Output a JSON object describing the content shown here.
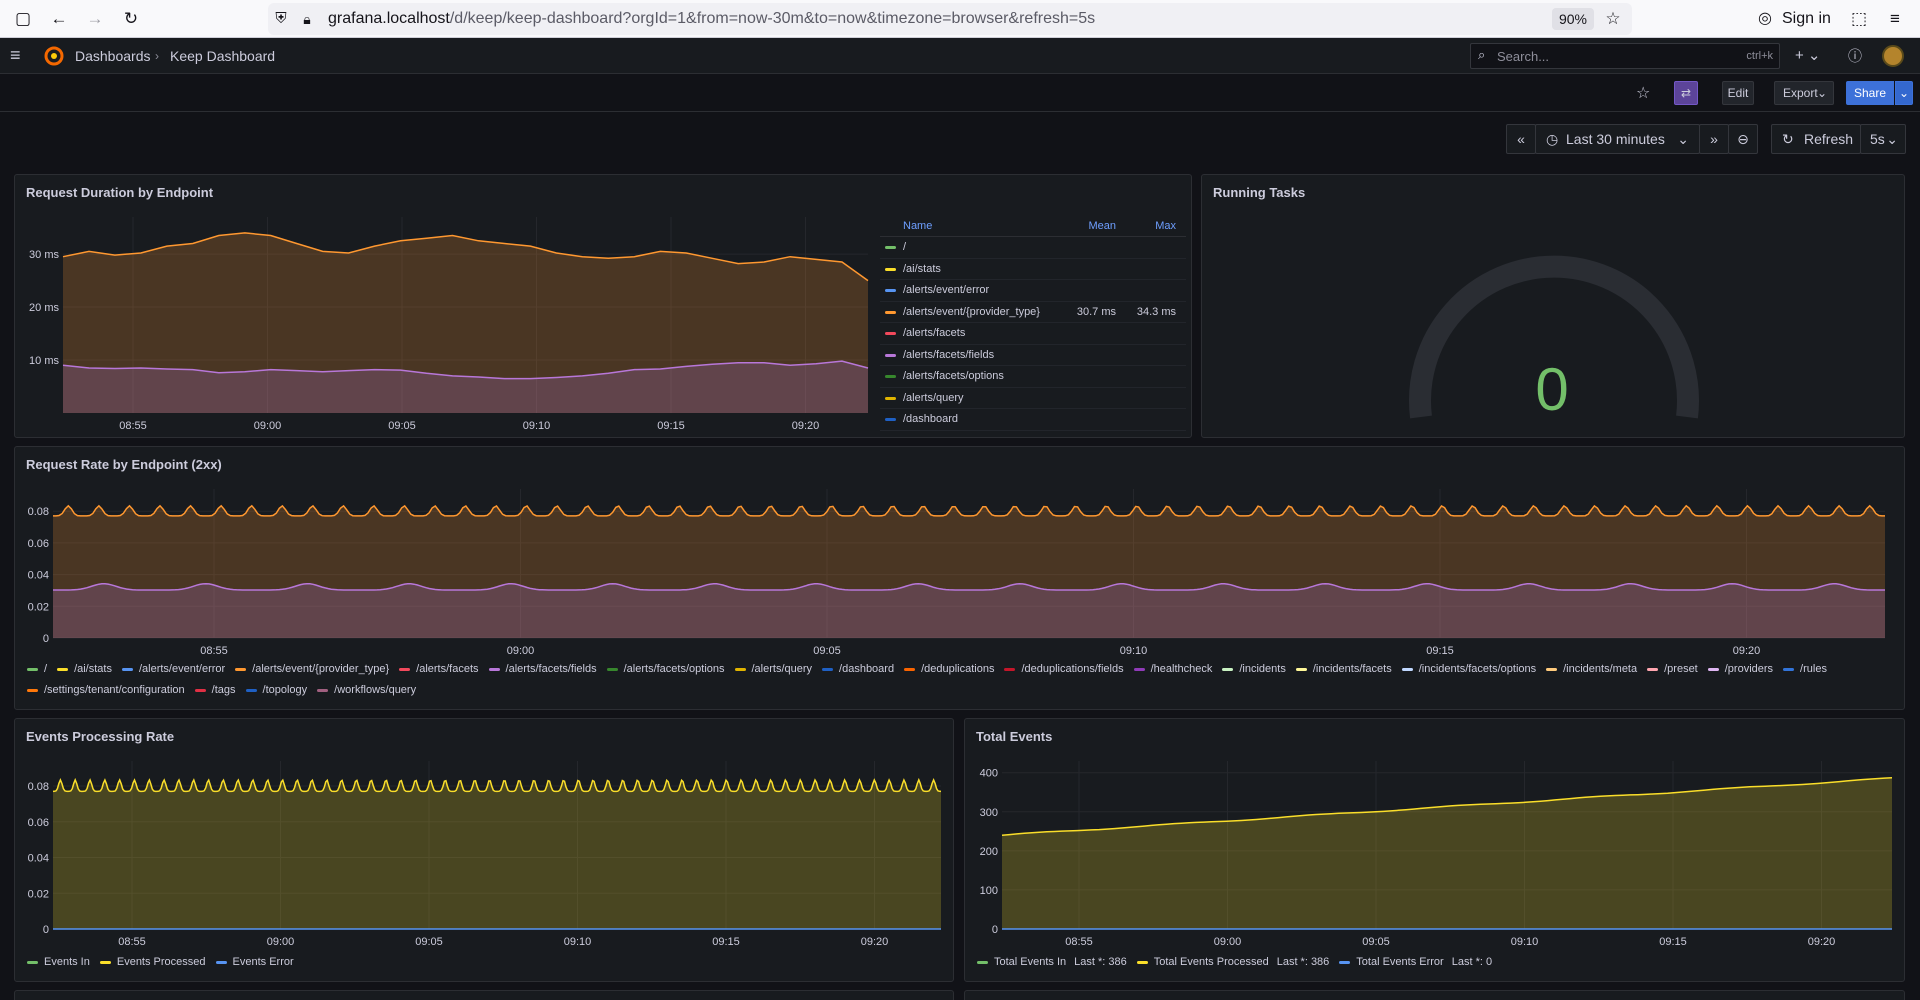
{
  "browser": {
    "url_host": "grafana.localhost",
    "url_rest": "/d/keep/keep-dashboard?orgId=1&from=now-30m&to=now&timezone=browser&refresh=5s",
    "zoom": "90%",
    "signin": "Sign in"
  },
  "topbar": {
    "breadcrumb_root": "Dashboards",
    "breadcrumb_current": "Keep Dashboard",
    "search_placeholder": "Search...",
    "search_shortcut": "ctrl+k",
    "edit": "Edit",
    "export": "Export",
    "share": "Share"
  },
  "time": {
    "range": "Last 30 minutes",
    "refresh": "Refresh",
    "interval": "5s"
  },
  "colors": {
    "green": "#73bf69",
    "yellow": "#fade2a",
    "blue": "#5794f2",
    "orange": "#ff9830",
    "red": "#f2495c",
    "purple": "#b877d9",
    "darkgreen": "#37872d",
    "darkblue": "#1f60c4",
    "darkorange": "#fa6400",
    "darkred": "#c4162a",
    "darkpurple": "#8f3bb8",
    "lightyellow": "#fff899",
    "paleblue": "#c0d8ff",
    "pink": "#ff7383",
    "palepurple": "#deb6f2",
    "midblue": "#3274d9",
    "rose": "#a16080"
  },
  "panels": {
    "duration": {
      "title": "Request Duration by Endpoint",
      "table_headers": {
        "name": "Name",
        "mean": "Mean",
        "max": "Max"
      },
      "rows": [
        {
          "name": "/",
          "color": "#73bf69",
          "mean": "",
          "max": ""
        },
        {
          "name": "/ai/stats",
          "color": "#fade2a",
          "mean": "",
          "max": ""
        },
        {
          "name": "/alerts/event/error",
          "color": "#5794f2",
          "mean": "",
          "max": ""
        },
        {
          "name": "/alerts/event/{provider_type}",
          "color": "#ff9830",
          "mean": "30.7 ms",
          "max": "34.3 ms"
        },
        {
          "name": "/alerts/facets",
          "color": "#f2495c",
          "mean": "",
          "max": ""
        },
        {
          "name": "/alerts/facets/fields",
          "color": "#b877d9",
          "mean": "",
          "max": ""
        },
        {
          "name": "/alerts/facets/options",
          "color": "#37872d",
          "mean": "",
          "max": ""
        },
        {
          "name": "/alerts/query",
          "color": "#e0b400",
          "mean": "",
          "max": ""
        },
        {
          "name": "/dashboard",
          "color": "#1f60c4",
          "mean": "",
          "max": ""
        }
      ]
    },
    "running": {
      "title": "Running Tasks",
      "value": "0"
    },
    "rate": {
      "title": "Request Rate by Endpoint (2xx)",
      "legend": [
        {
          "name": "/",
          "color": "#73bf69"
        },
        {
          "name": "/ai/stats",
          "color": "#fade2a"
        },
        {
          "name": "/alerts/event/error",
          "color": "#5794f2"
        },
        {
          "name": "/alerts/event/{provider_type}",
          "color": "#ff9830"
        },
        {
          "name": "/alerts/facets",
          "color": "#f2495c"
        },
        {
          "name": "/alerts/facets/fields",
          "color": "#b877d9"
        },
        {
          "name": "/alerts/facets/options",
          "color": "#37872d"
        },
        {
          "name": "/alerts/query",
          "color": "#e0b400"
        },
        {
          "name": "/dashboard",
          "color": "#1f60c4"
        },
        {
          "name": "/deduplications",
          "color": "#fa6400"
        },
        {
          "name": "/deduplications/fields",
          "color": "#c4162a"
        },
        {
          "name": "/healthcheck",
          "color": "#8f3bb8"
        },
        {
          "name": "/incidents",
          "color": "#c8f2c2"
        },
        {
          "name": "/incidents/facets",
          "color": "#fff899"
        },
        {
          "name": "/incidents/facets/options",
          "color": "#c0d8ff"
        },
        {
          "name": "/incidents/meta",
          "color": "#ffcb7d"
        },
        {
          "name": "/preset",
          "color": "#ffa6b0"
        },
        {
          "name": "/providers",
          "color": "#deb6f2"
        },
        {
          "name": "/rules",
          "color": "#3274d9"
        },
        {
          "name": "/settings/tenant/configuration",
          "color": "#ff780a"
        },
        {
          "name": "/tags",
          "color": "#e02f44"
        },
        {
          "name": "/topology",
          "color": "#1f60c4"
        },
        {
          "name": "/workflows/query",
          "color": "#a16080"
        }
      ]
    },
    "events_rate": {
      "title": "Events Processing Rate",
      "legend": [
        {
          "name": "Events In",
          "color": "#73bf69"
        },
        {
          "name": "Events Processed",
          "color": "#fade2a"
        },
        {
          "name": "Events Error",
          "color": "#5794f2"
        }
      ]
    },
    "total_events": {
      "title": "Total Events",
      "legend": [
        {
          "name": "Total Events In",
          "color": "#73bf69",
          "stat": "Last *: 386"
        },
        {
          "name": "Total Events Processed",
          "color": "#fade2a",
          "stat": "Last *: 386"
        },
        {
          "name": "Total Events Error",
          "color": "#5794f2",
          "stat": "Last *: 0"
        }
      ]
    }
  },
  "chart_data": [
    {
      "type": "area",
      "title": "Request Duration by Endpoint",
      "x_ticks": [
        "08:55",
        "09:00",
        "09:05",
        "09:10",
        "09:15",
        "09:20"
      ],
      "y_ticks": [
        "10 ms",
        "20 ms",
        "30 ms"
      ],
      "ylim": [
        0,
        37
      ],
      "x": [
        "08:51",
        "08:52",
        "08:53",
        "08:54",
        "08:55",
        "08:56",
        "08:57",
        "08:58",
        "08:59",
        "09:00",
        "09:01",
        "09:02",
        "09:03",
        "09:04",
        "09:05",
        "09:06",
        "09:07",
        "09:08",
        "09:09",
        "09:10",
        "09:11",
        "09:12",
        "09:13",
        "09:14",
        "09:15",
        "09:16",
        "09:17",
        "09:18",
        "09:19",
        "09:20",
        "09:21",
        "09:22"
      ],
      "series": [
        {
          "name": "/alerts/event/{provider_type}",
          "color": "#ff9830",
          "values": [
            29.5,
            30.5,
            29.8,
            30.2,
            31.5,
            32,
            33.5,
            34,
            33.5,
            32,
            30.5,
            30.2,
            31.5,
            32.5,
            33,
            33.5,
            32.5,
            32,
            31.5,
            30.2,
            29.5,
            29.2,
            29.5,
            30.5,
            30.2,
            29.2,
            28.2,
            28.5,
            29.5,
            29,
            28.5,
            25
          ]
        },
        {
          "name": "/alerts/facets/fields",
          "color": "#b877d9",
          "values": [
            9,
            8.5,
            8.4,
            8.5,
            8.3,
            8.2,
            7.6,
            7.8,
            8.2,
            8.0,
            7.8,
            8.0,
            8.2,
            8.1,
            7.5,
            7.0,
            6.8,
            6.5,
            6.5,
            6.7,
            7.0,
            7.5,
            8.2,
            8.3,
            8.8,
            9.2,
            9.5,
            9.5,
            9.0,
            9.3,
            9.8,
            8.5
          ]
        }
      ]
    },
    {
      "type": "area",
      "title": "Request Rate by Endpoint (2xx)",
      "x_ticks": [
        "08:55",
        "09:00",
        "09:05",
        "09:10",
        "09:15",
        "09:20"
      ],
      "y_ticks": [
        "0",
        "0.02",
        "0.04",
        "0.06",
        "0.08"
      ],
      "ylim": [
        0,
        0.094
      ],
      "series": [
        {
          "name": "/alerts/event/{provider_type}",
          "color": "#ff9830",
          "base": 0.079,
          "amplitude": 0.004,
          "cycles": 60
        },
        {
          "name": "/alerts/facets/fields",
          "color": "#b877d9",
          "base": 0.0315,
          "amplitude": 0.0025,
          "cycles": 18
        }
      ]
    },
    {
      "type": "area",
      "title": "Events Processing Rate",
      "x_ticks": [
        "08:55",
        "09:00",
        "09:05",
        "09:10",
        "09:15",
        "09:20"
      ],
      "y_ticks": [
        "0",
        "0.02",
        "0.04",
        "0.06",
        "0.08"
      ],
      "ylim": [
        0,
        0.094
      ],
      "series": [
        {
          "name": "Events Processed",
          "color": "#fade2a",
          "base": 0.079,
          "amplitude": 0.004,
          "cycles": 60
        },
        {
          "name": "Events Error",
          "color": "#5794f2",
          "values": [
            0,
            0
          ]
        }
      ]
    },
    {
      "type": "area",
      "title": "Total Events",
      "x_ticks": [
        "08:55",
        "09:00",
        "09:05",
        "09:10",
        "09:15",
        "09:20"
      ],
      "y_ticks": [
        "0",
        "100",
        "200",
        "300",
        "400"
      ],
      "ylim": [
        0,
        430
      ],
      "series": [
        {
          "name": "Total Events Processed",
          "color": "#fade2a",
          "start": 240,
          "end": 386
        },
        {
          "name": "Total Events Error",
          "color": "#5794f2",
          "values": [
            0,
            0
          ]
        }
      ]
    }
  ]
}
